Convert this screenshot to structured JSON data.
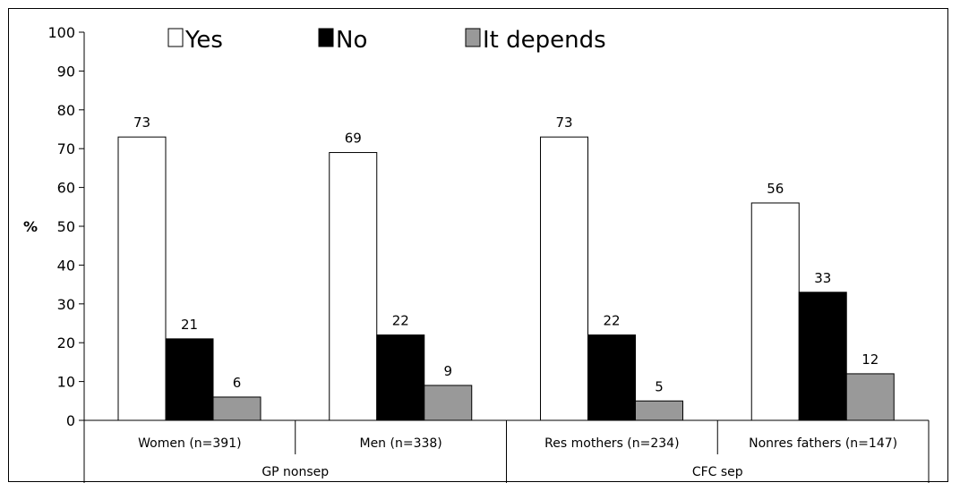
{
  "chart_data": {
    "type": "bar",
    "title": "",
    "xlabel": "",
    "ylabel": "%",
    "ylim": [
      0,
      100
    ],
    "yticks": [
      0,
      10,
      20,
      30,
      40,
      50,
      60,
      70,
      80,
      90,
      100
    ],
    "grid": false,
    "legend_position": "top",
    "categories": [
      "Women (n=391)",
      "Men (n=338)",
      "Res mothers (n=234)",
      "Nonres fathers (n=147)"
    ],
    "groups": [
      {
        "label": "GP nonsep",
        "categories": [
          "Women (n=391)",
          "Men (n=338)"
        ]
      },
      {
        "label": "CFC sep",
        "categories": [
          "Res mothers (n=234)",
          "Nonres fathers (n=147)"
        ]
      }
    ],
    "series": [
      {
        "name": "Yes",
        "color": "#ffffff",
        "values": [
          73,
          69,
          73,
          56
        ]
      },
      {
        "name": "No",
        "color": "#000000",
        "values": [
          21,
          22,
          22,
          33
        ]
      },
      {
        "name": "It depends",
        "color": "#999999",
        "values": [
          6,
          9,
          5,
          12
        ]
      }
    ]
  }
}
